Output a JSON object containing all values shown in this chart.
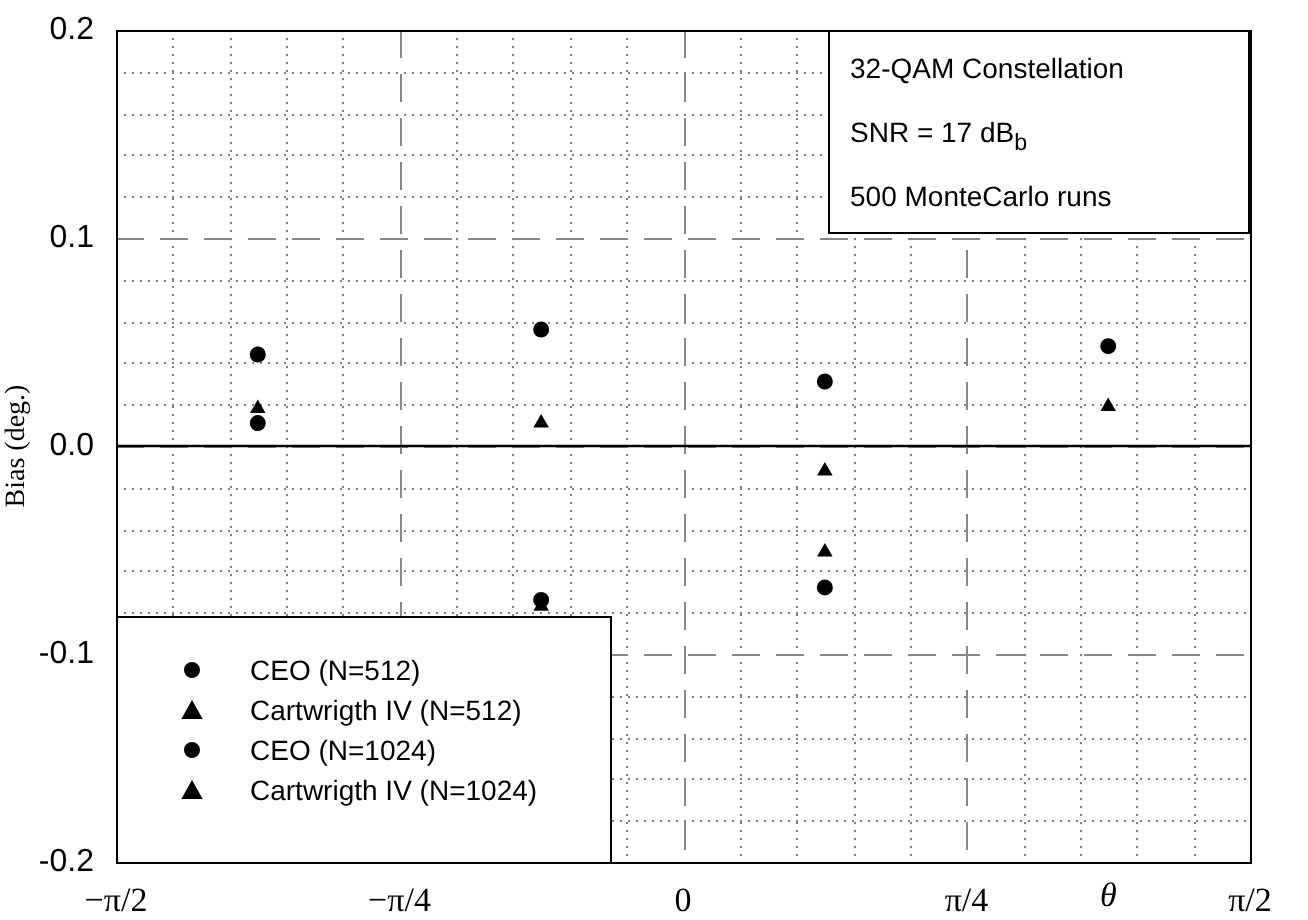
{
  "chart_data": {
    "type": "scatter",
    "xlabel": "θ",
    "ylabel": "Bias (deg.)",
    "annotations": [
      "32-QAM Constellation",
      "SNR = 17 dB$_{b}$",
      "500 MonteCarlo runs"
    ],
    "x": [
      -1.178,
      -0.393,
      0.393,
      1.178
    ],
    "series": [
      {
        "name": "CEO (N=512)",
        "color": "#000000",
        "marker": "circle",
        "values": [
          0.044,
          0.056,
          0.031,
          0.048
        ]
      },
      {
        "name": "Cartwrigth IV (N=512)",
        "color": "#000000",
        "marker": "triangle",
        "values": [
          null,
          -0.077,
          -0.012,
          null
        ]
      },
      {
        "name": "CEO (N=1024)",
        "color": "#000000",
        "marker": "circle",
        "values": [
          0.011,
          -0.074,
          -0.068,
          null
        ]
      },
      {
        "name": "Cartwrigth IV (N=1024)",
        "color": "#000000",
        "marker": "triangle",
        "values": [
          0.018,
          0.011,
          -0.051,
          0.019
        ]
      }
    ],
    "xlim": [
      -1.5708,
      1.5708
    ],
    "xticks": [
      {
        "value": -1.5708,
        "label": "−π/2"
      },
      {
        "value": -0.7854,
        "label": "−π/4"
      },
      0,
      {
        "value": 0.7854,
        "label": "π/4"
      },
      {
        "value": 1.5708,
        "label": "π/2"
      }
    ],
    "ylim": [
      -0.2,
      0.2
    ],
    "yticks": [
      -0.2,
      -0.1,
      {
        "value": 0,
        "label": "0.0"
      },
      0.1,
      0.2
    ],
    "ref_lines": [
      {
        "axis": "y",
        "value": 0,
        "color": "#000000",
        "line_style": "solid"
      }
    ],
    "grid": true,
    "legend": "bottom left"
  }
}
